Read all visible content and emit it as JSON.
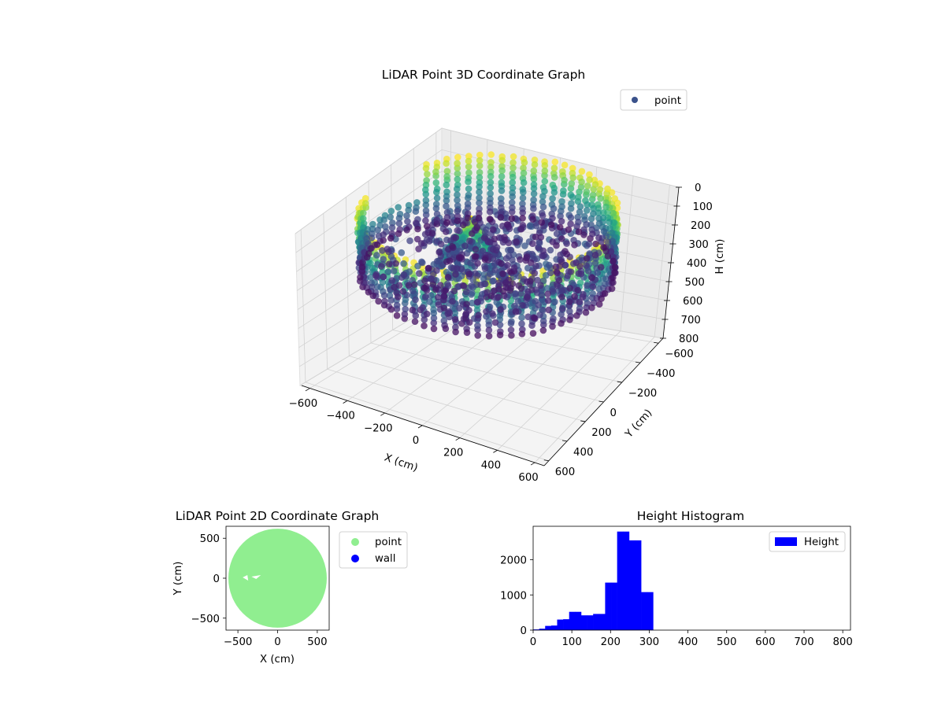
{
  "colors": {
    "point_legend": "#3b528b",
    "point_2d": "#90ee90",
    "wall_2d": "#0000ff",
    "hist": "#0000ff",
    "pane": "#f2f2f2",
    "grid": "#cfcfcf"
  },
  "chart_data": [
    {
      "type": "scatter3d",
      "title": "LiDAR Point 3D Coordinate Graph",
      "xlabel": "X (cm)",
      "ylabel": "Y (cm)",
      "zlabel": "H (cm)",
      "xticks": [
        "−600",
        "−400",
        "−200",
        "0",
        "200",
        "400",
        "600"
      ],
      "yticks": [
        "600",
        "400",
        "200",
        "0",
        "−200",
        "−400",
        "−600"
      ],
      "zticks": [
        "0",
        "100",
        "200",
        "300",
        "400",
        "500",
        "600",
        "700",
        "800"
      ],
      "xlim": [
        -650,
        650
      ],
      "ylim": [
        -650,
        650
      ],
      "zlim": [
        0,
        800
      ],
      "z_inverted": true,
      "colormap": "viridis",
      "grid": true,
      "legend": {
        "position": "upper right",
        "entries": [
          {
            "label": "point",
            "color": "#3b528b"
          }
        ]
      },
      "description_points": {
        "wall_ring": {
          "radius": 600,
          "height_range": [
            0,
            310
          ]
        },
        "interior_mass": {
          "center": [
            -50,
            80
          ],
          "max_height": 300
        }
      }
    },
    {
      "type": "scatter",
      "title": "LiDAR Point 2D Coordinate Graph",
      "xlabel": "X (cm)",
      "ylabel": "Y (cm)",
      "xticks": [
        "−500",
        "0",
        "500"
      ],
      "yticks": [
        "500",
        "0",
        "−500"
      ],
      "xlim": [
        -650,
        650
      ],
      "ylim": [
        -650,
        650
      ],
      "legend": {
        "position": "outside right",
        "entries": [
          {
            "label": "point",
            "color": "#90ee90"
          },
          {
            "label": "wall",
            "color": "#0000ff"
          }
        ]
      },
      "shape": {
        "type": "filled_disc",
        "radius": 600
      }
    },
    {
      "type": "bar",
      "title": "Height Histogram",
      "xlabel": "",
      "ylabel": "",
      "bin_edges": [
        0,
        15.5,
        31,
        46.5,
        62,
        77.5,
        93,
        108.5,
        124,
        139.5,
        155,
        170.5,
        186,
        201.5,
        217,
        232.5,
        248,
        263.5,
        279,
        294.5,
        310
      ],
      "values": [
        20,
        40,
        120,
        130,
        300,
        310,
        520,
        520,
        420,
        420,
        460,
        460,
        1350,
        1350,
        2800,
        2800,
        2550,
        2550,
        1080,
        1080
      ],
      "xlim": [
        0,
        820
      ],
      "ylim": [
        0,
        2950
      ],
      "xticks": [
        "0",
        "100",
        "200",
        "300",
        "400",
        "500",
        "600",
        "700",
        "800"
      ],
      "yticks": [
        "0",
        "1000",
        "2000"
      ],
      "legend": {
        "position": "upper right",
        "entries": [
          {
            "label": "Height",
            "color": "#0000ff"
          }
        ]
      }
    }
  ]
}
